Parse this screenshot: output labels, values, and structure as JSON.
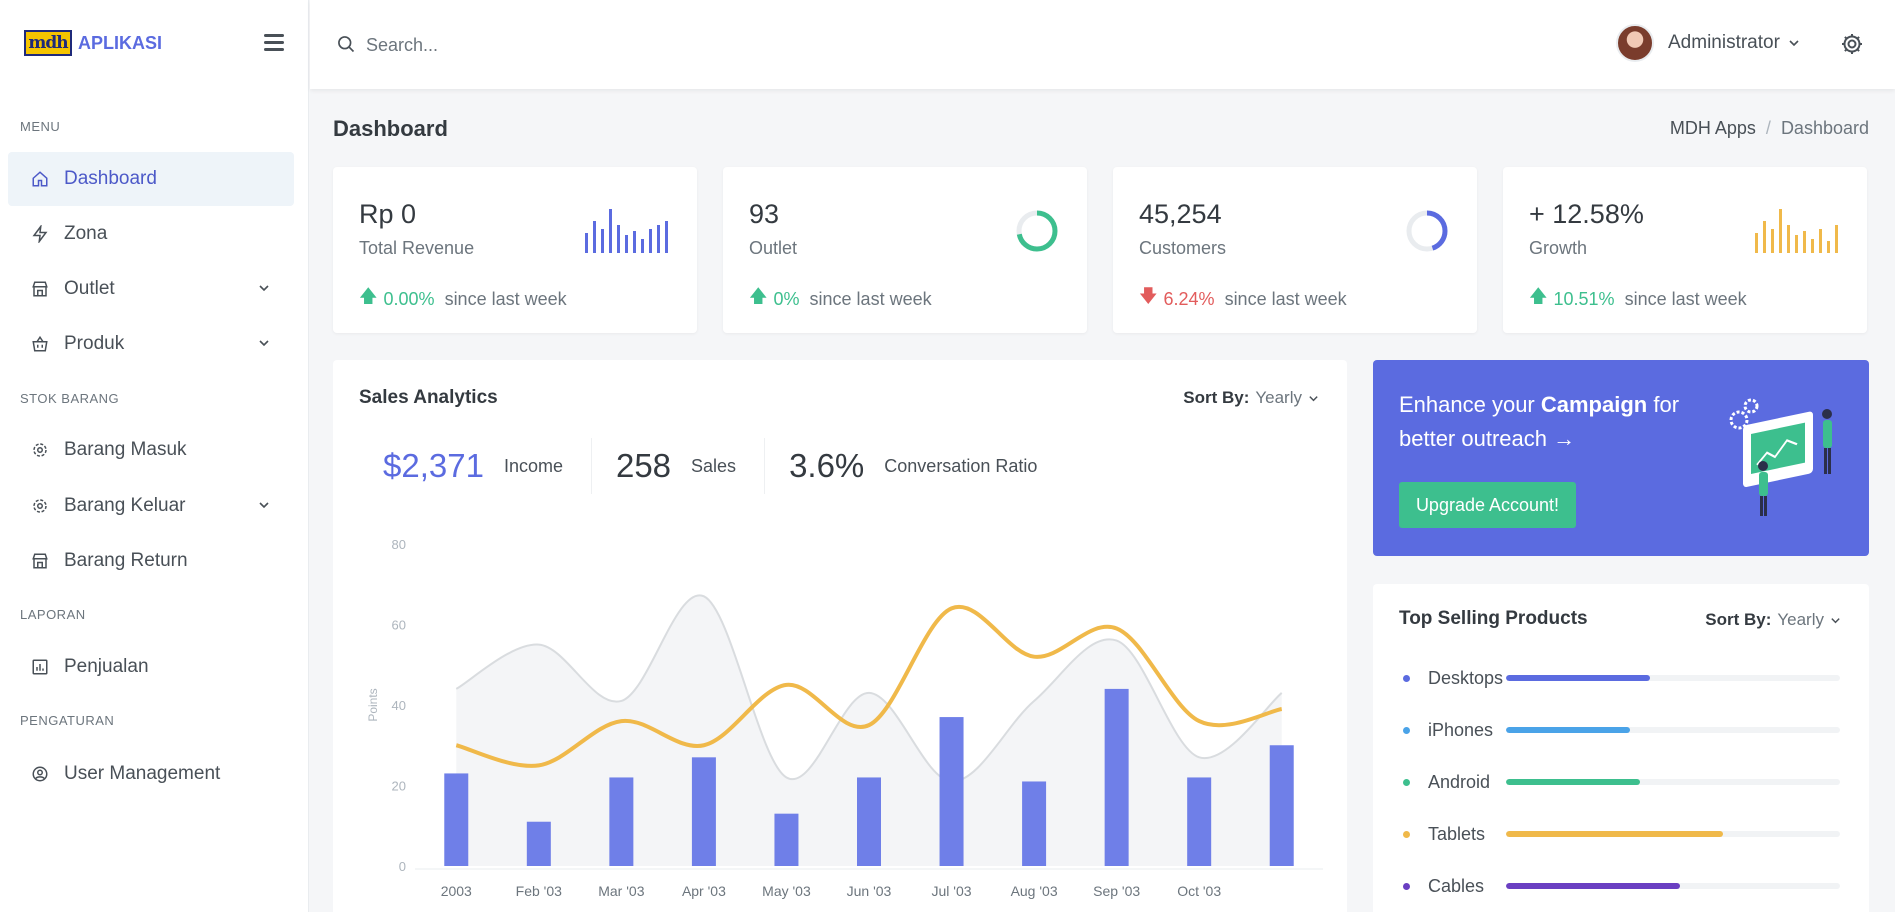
{
  "brand": {
    "logo_text": "mdh",
    "name": "APLIKASI"
  },
  "sidebar": {
    "sections": [
      {
        "heading": "MENU",
        "items": [
          {
            "label": "Dashboard",
            "icon": "home-icon",
            "active": true
          },
          {
            "label": "Zona",
            "icon": "bolt-icon"
          },
          {
            "label": "Outlet",
            "icon": "store-icon",
            "has_children": true
          },
          {
            "label": "Produk",
            "icon": "basket-icon",
            "has_children": true
          }
        ]
      },
      {
        "heading": "STOK BARANG",
        "items": [
          {
            "label": "Barang Masuk",
            "icon": "gear-icon"
          },
          {
            "label": "Barang Keluar",
            "icon": "gear-icon",
            "has_children": true
          },
          {
            "label": "Barang Return",
            "icon": "store-icon"
          }
        ]
      },
      {
        "heading": "LAPORAN",
        "items": [
          {
            "label": "Penjualan",
            "icon": "bar-chart-icon"
          }
        ]
      },
      {
        "heading": "PENGATURAN",
        "items": [
          {
            "label": "User Management",
            "icon": "user-circle-icon"
          }
        ]
      }
    ]
  },
  "topbar": {
    "search_placeholder": "Search...",
    "user_name": "Administrator"
  },
  "page": {
    "title": "Dashboard",
    "breadcrumb": [
      "MDH Apps",
      "Dashboard"
    ]
  },
  "stats": [
    {
      "value": "Rp 0",
      "label": "Total Revenue",
      "change": "0.00%",
      "direction": "up",
      "since": "since last week",
      "mini": "bars",
      "color": "#5b6be0"
    },
    {
      "value": "93",
      "label": "Outlet",
      "change": "0%",
      "direction": "up",
      "since": "since last week",
      "mini": "ring",
      "color": "#3dbf8e",
      "ring_level": 0.72
    },
    {
      "value": "45,254",
      "label": "Customers",
      "change": "6.24%",
      "direction": "down",
      "since": "since last week",
      "mini": "ring",
      "color": "#5b6be0",
      "ring_level": 0.45
    },
    {
      "value": "+ 12.58%",
      "label": "Growth",
      "change": "10.51%",
      "direction": "up",
      "since": "since last week",
      "mini": "bars",
      "color": "#f0b94a"
    }
  ],
  "analytics": {
    "title": "Sales Analytics",
    "sort_label": "Sort By:",
    "sort_value": "Yearly",
    "kpis": [
      {
        "value": "$2,371",
        "label": "Income",
        "primary": true
      },
      {
        "value": "258",
        "label": "Sales"
      },
      {
        "value": "3.6%",
        "label": "Conversation Ratio"
      }
    ]
  },
  "chart_data": {
    "type": "bar",
    "ylabel": "Points",
    "ylim": [
      0,
      80
    ],
    "yticks": [
      0,
      20,
      40,
      60,
      80
    ],
    "x_tick_labels": [
      "2003",
      "Feb '03",
      "Mar '03",
      "Apr '03",
      "May '03",
      "Jun '03",
      "Jul '03",
      "Aug '03",
      "Sep '03",
      "Oct '03"
    ],
    "series": [
      {
        "type": "bar",
        "color": "#6f7fe8",
        "values": [
          23,
          11,
          22,
          27,
          13,
          22,
          37,
          21,
          44,
          22,
          30
        ]
      },
      {
        "type": "area",
        "color": "#d9dcdf",
        "values": [
          44,
          55,
          41,
          67,
          22,
          43,
          21,
          41,
          56,
          27,
          43
        ]
      },
      {
        "type": "line",
        "color": "#f0b94a",
        "values": [
          30,
          25,
          36,
          30,
          45,
          35,
          64,
          52,
          59,
          36,
          39
        ]
      }
    ],
    "grid": false
  },
  "promo": {
    "text_before": "Enhance your ",
    "text_bold": "Campaign",
    "text_after": " for better outreach →",
    "button": "Upgrade Account!"
  },
  "top_selling": {
    "title": "Top Selling Products",
    "sort_label": "Sort By:",
    "sort_value": "Yearly",
    "products": [
      {
        "name": "Desktops",
        "level": 0.43,
        "color": "#5b6be0"
      },
      {
        "name": "iPhones",
        "level": 0.37,
        "color": "#4aa3e8"
      },
      {
        "name": "Android",
        "level": 0.4,
        "color": "#3dbf8e"
      },
      {
        "name": "Tablets",
        "level": 0.65,
        "color": "#f0b94a"
      },
      {
        "name": "Cables",
        "level": 0.52,
        "color": "#6a3fc2"
      }
    ]
  }
}
